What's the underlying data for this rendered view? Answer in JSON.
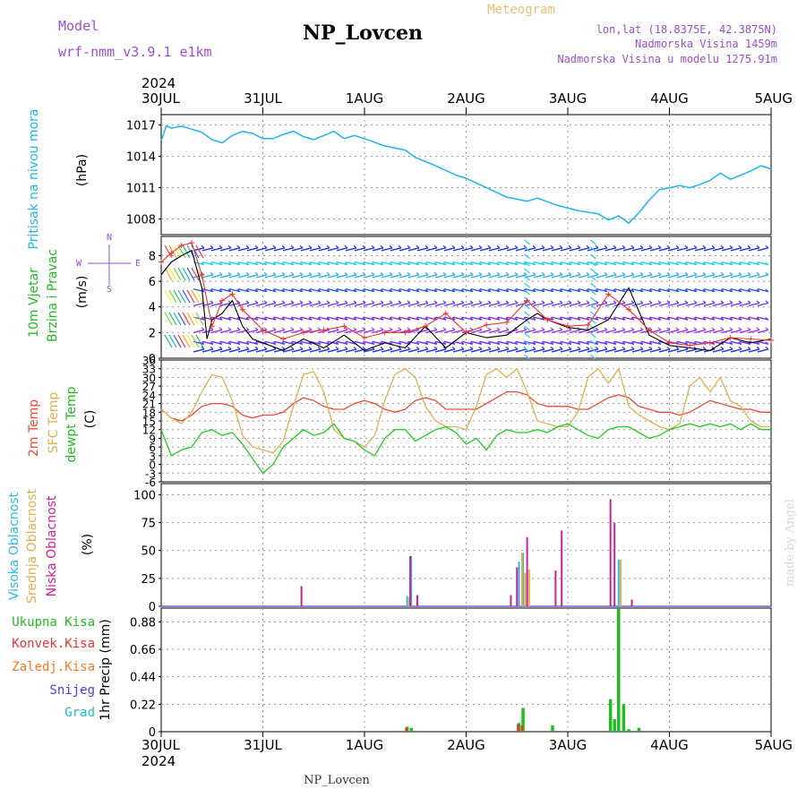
{
  "header": {
    "model_label": "Model",
    "model_name": "wrf-nmm_v3.9.1  e1km",
    "station": "NP_Lovcen",
    "meteogram": "Meteogram",
    "lonlat": "lon,lat (18.8375E, 42.3875N)",
    "altitude": "Nadmorska Visina 1459m",
    "model_altitude": "Nadmorska Visina u modelu 1275.91m",
    "year": "2024",
    "footer": "NP_Lovcen",
    "credit": "made by Angel"
  },
  "colors": {
    "pressure": "#1fb4ee",
    "temp2m": "#ef4a3a",
    "sfc": "#e0b050",
    "dewpt": "#22cc22",
    "high_cloud": "#2fb8e0",
    "mid_cloud": "#e0b050",
    "low_cloud": "#cc2299",
    "total_precip": "#22bb22",
    "conv_precip": "#ee3333",
    "frz_precip": "#ff7722",
    "snow": "#4444ee",
    "hail": "#22bbbb",
    "label_purple": "#9b4fd0"
  },
  "chart_data": [
    {
      "type": "line",
      "panel": "pressure",
      "ylabel_left": "Pritisak na nivou mora",
      "ylabel_unit": "(hPa)",
      "x_ticks": [
        "30JUL",
        "31JUL",
        "1AUG",
        "2AUG",
        "3AUG",
        "4AUG",
        "5AUG"
      ],
      "x_range_days": [
        0,
        6
      ],
      "ylim": [
        1006.5,
        1018
      ],
      "y_ticks": [
        1008,
        1011,
        1014,
        1017
      ],
      "grid": true,
      "series": [
        {
          "x": [
            0,
            0.05,
            0.1,
            0.2,
            0.3,
            0.4,
            0.5,
            0.6,
            0.7,
            0.8,
            0.9,
            1.0,
            1.1,
            1.2,
            1.3,
            1.4,
            1.5,
            1.6,
            1.7,
            1.8,
            1.9,
            2.0,
            2.2,
            2.4,
            2.5,
            2.7,
            2.9,
            3.0,
            3.2,
            3.4,
            3.5,
            3.6,
            3.7,
            3.9,
            4.1,
            4.3,
            4.4,
            4.5,
            4.6,
            4.7,
            4.8,
            4.9,
            5.0,
            5.1,
            5.2,
            5.3,
            5.4,
            5.5,
            5.6,
            5.7,
            5.8,
            5.9,
            6.0
          ],
          "values": [
            1015.5,
            1016.9,
            1016.7,
            1016.9,
            1016.6,
            1016.3,
            1015.6,
            1015.3,
            1016.0,
            1016.4,
            1016.2,
            1015.7,
            1015.7,
            1016.1,
            1016.4,
            1015.9,
            1015.6,
            1016.0,
            1016.4,
            1015.7,
            1016.0,
            1015.7,
            1015.0,
            1014.6,
            1013.9,
            1013.1,
            1012.2,
            1011.9,
            1011.0,
            1010.1,
            1009.9,
            1009.7,
            1010.0,
            1009.3,
            1008.8,
            1008.5,
            1007.9,
            1008.3,
            1007.6,
            1008.6,
            1009.8,
            1010.8,
            1011.0,
            1011.2,
            1011.0,
            1011.3,
            1011.7,
            1012.4,
            1011.8,
            1012.2,
            1012.6,
            1013.1,
            1012.8
          ]
        }
      ]
    },
    {
      "type": "line",
      "panel": "wind",
      "ylabel_left": "10m Vjetar",
      "ylabel_left2": "Brzina i Pravac",
      "ylabel_unit": "(m/s)",
      "compass": [
        "N",
        "W",
        "E",
        "S"
      ],
      "ylim": [
        0,
        9.5
      ],
      "y_ticks": [
        0,
        2,
        4,
        6,
        8
      ],
      "grid": true,
      "series": [
        {
          "name": "speed",
          "x": [
            0,
            0.1,
            0.2,
            0.3,
            0.4,
            0.45,
            0.5,
            0.6,
            0.7,
            0.8,
            0.9,
            1.0,
            1.2,
            1.4,
            1.6,
            1.8,
            2.0,
            2.2,
            2.4,
            2.6,
            2.8,
            3.0,
            3.2,
            3.4,
            3.6,
            3.7,
            3.8,
            4.0,
            4.2,
            4.4,
            4.6,
            4.8,
            5.0,
            5.2,
            5.4,
            5.6,
            5.8,
            6.0
          ],
          "values": [
            6.5,
            7.5,
            8.0,
            8.4,
            5.5,
            1.5,
            3.0,
            3.5,
            4.5,
            2.5,
            1.5,
            1.2,
            0.6,
            1.5,
            0.8,
            1.8,
            0.6,
            1.2,
            0.8,
            2.5,
            0.8,
            2.0,
            1.6,
            1.8,
            3.0,
            3.5,
            3.0,
            2.4,
            2.2,
            3.0,
            5.5,
            1.8,
            1.0,
            0.8,
            0.6,
            1.6,
            1.2,
            1.5
          ]
        },
        {
          "name": "gust",
          "x": [
            0,
            0.1,
            0.2,
            0.3,
            0.4,
            0.5,
            0.6,
            0.7,
            0.8,
            1.0,
            1.2,
            1.4,
            1.6,
            1.8,
            2.0,
            2.2,
            2.4,
            2.6,
            2.8,
            3.0,
            3.2,
            3.4,
            3.6,
            3.8,
            4.0,
            4.2,
            4.4,
            4.6,
            4.8,
            5.0,
            5.2,
            5.4,
            5.6,
            5.8,
            6.0
          ],
          "values": [
            7.5,
            8.2,
            8.8,
            9.0,
            6.5,
            2.5,
            4.5,
            5.0,
            3.8,
            2.2,
            1.5,
            2.0,
            2.2,
            2.5,
            1.6,
            2.0,
            2.0,
            2.5,
            3.5,
            2.0,
            2.6,
            2.8,
            4.5,
            3.0,
            2.5,
            2.6,
            5.0,
            3.8,
            2.2,
            1.2,
            1.0,
            1.2,
            1.6,
            1.5,
            1.4
          ]
        }
      ]
    },
    {
      "type": "line",
      "panel": "temperature",
      "ylabel_left": "2m Temp",
      "ylabel_left2": "SFC Temp",
      "ylabel_left3": "dewpt Temp",
      "ylabel_unit": "(C)",
      "ylim": [
        -6,
        36
      ],
      "y_ticks": [
        -6,
        -3,
        0,
        3,
        6,
        9,
        12,
        15,
        18,
        21,
        24,
        27,
        30,
        33,
        36
      ],
      "y_tick_labels": [
        "-6",
        "-3",
        "0",
        "3",
        "6",
        "9",
        "12",
        "15",
        "18",
        "21",
        "24",
        "27",
        "30",
        "33",
        "36"
      ],
      "grid": true,
      "series": [
        {
          "name": "2m Temp",
          "x": [
            0,
            0.1,
            0.2,
            0.3,
            0.4,
            0.5,
            0.6,
            0.7,
            0.8,
            0.9,
            1.0,
            1.1,
            1.2,
            1.3,
            1.4,
            1.5,
            1.6,
            1.7,
            1.8,
            1.9,
            2.0,
            2.1,
            2.2,
            2.3,
            2.4,
            2.5,
            2.6,
            2.7,
            2.8,
            2.9,
            3.0,
            3.1,
            3.2,
            3.3,
            3.4,
            3.5,
            3.6,
            3.7,
            3.8,
            3.9,
            4.0,
            4.1,
            4.2,
            4.3,
            4.4,
            4.5,
            4.6,
            4.7,
            4.8,
            4.9,
            5.0,
            5.1,
            5.2,
            5.3,
            5.4,
            5.5,
            5.6,
            5.7,
            5.8,
            5.9,
            6.0
          ],
          "values": [
            19,
            16,
            15,
            17,
            20,
            21,
            21,
            20,
            17,
            16,
            17,
            17,
            18,
            21,
            23,
            22,
            20,
            19,
            19,
            21,
            22,
            21,
            19,
            18,
            19,
            22,
            23,
            22,
            19,
            19,
            19,
            19,
            21,
            23,
            25,
            25,
            24,
            21,
            20,
            20,
            20,
            19,
            19,
            21,
            23,
            24,
            23,
            20,
            19,
            18,
            18,
            17,
            18,
            20,
            22,
            21,
            20,
            19,
            19,
            18,
            18
          ]
        },
        {
          "name": "SFC Temp",
          "x": [
            0,
            0.1,
            0.2,
            0.3,
            0.4,
            0.5,
            0.6,
            0.7,
            0.8,
            0.9,
            1.0,
            1.1,
            1.2,
            1.3,
            1.4,
            1.5,
            1.6,
            1.7,
            1.8,
            1.9,
            2.0,
            2.1,
            2.2,
            2.3,
            2.4,
            2.5,
            2.6,
            2.7,
            2.8,
            2.9,
            3.0,
            3.1,
            3.2,
            3.3,
            3.4,
            3.5,
            3.6,
            3.7,
            3.8,
            3.9,
            4.0,
            4.1,
            4.2,
            4.3,
            4.4,
            4.5,
            4.6,
            4.7,
            4.8,
            4.9,
            5.0,
            5.1,
            5.2,
            5.3,
            5.4,
            5.5,
            5.6,
            5.7,
            5.8,
            5.9,
            6.0
          ],
          "values": [
            19,
            16,
            14,
            18,
            25,
            31,
            30,
            22,
            10,
            6,
            5,
            4,
            8,
            20,
            31,
            32,
            25,
            12,
            9,
            8,
            6,
            10,
            22,
            31,
            33,
            30,
            20,
            15,
            13,
            13,
            12,
            20,
            31,
            33,
            30,
            33,
            25,
            15,
            14,
            13,
            13,
            18,
            30,
            33,
            28,
            33,
            20,
            17,
            15,
            13,
            12,
            14,
            27,
            30,
            25,
            30,
            22,
            20,
            15,
            13,
            13
          ]
        },
        {
          "name": "dewpt Temp",
          "x": [
            0,
            0.1,
            0.2,
            0.3,
            0.4,
            0.5,
            0.6,
            0.7,
            0.8,
            0.9,
            1.0,
            1.1,
            1.2,
            1.3,
            1.4,
            1.5,
            1.6,
            1.7,
            1.8,
            1.9,
            2.0,
            2.1,
            2.2,
            2.3,
            2.4,
            2.5,
            2.6,
            2.7,
            2.8,
            2.9,
            3.0,
            3.1,
            3.2,
            3.3,
            3.4,
            3.5,
            3.6,
            3.7,
            3.8,
            3.9,
            4.0,
            4.1,
            4.2,
            4.3,
            4.4,
            4.5,
            4.6,
            4.7,
            4.8,
            4.9,
            5.0,
            5.1,
            5.2,
            5.3,
            5.4,
            5.5,
            5.6,
            5.7,
            5.8,
            5.9,
            6.0
          ],
          "values": [
            12,
            3,
            5,
            6,
            11,
            12,
            10,
            11,
            7,
            2,
            -3,
            0,
            6,
            9,
            12,
            10,
            11,
            14,
            9,
            8,
            5,
            3,
            9,
            12,
            12,
            8,
            10,
            12,
            13,
            11,
            7,
            9,
            5,
            10,
            12,
            11,
            11,
            12,
            11,
            13,
            14,
            12,
            10,
            9,
            12,
            13,
            13,
            11,
            9,
            10,
            12,
            13,
            14,
            13,
            14,
            13,
            14,
            12,
            14,
            12,
            12
          ]
        }
      ]
    },
    {
      "type": "bar",
      "panel": "clouds",
      "ylabel_left": "Visoka Oblacnost",
      "ylabel_left2": "Srednja Oblacnost",
      "ylabel_left3": "Niska Oblacnost",
      "ylabel_unit": "(%)",
      "ylim": [
        0,
        110
      ],
      "y_ticks": [
        0,
        25,
        50,
        75,
        100
      ],
      "grid": true,
      "series": [
        {
          "name": "Visoka Oblacnost",
          "x": [
            2.42,
            2.46,
            3.52,
            3.56,
            4.5
          ],
          "values": [
            9,
            45,
            40,
            48,
            42
          ]
        },
        {
          "name": "Srednja Oblacnost",
          "x": [
            2.44,
            3.55,
            3.58,
            3.62,
            4.52
          ],
          "values": [
            8,
            48,
            30,
            33,
            42
          ]
        },
        {
          "name": "Niska Oblacnost",
          "x": [
            1.38,
            2.45,
            2.52,
            3.44,
            3.5,
            3.6,
            3.88,
            3.94,
            4.42,
            4.46,
            4.63
          ],
          "values": [
            18,
            45,
            10,
            10,
            35,
            62,
            32,
            68,
            96,
            75,
            6
          ]
        }
      ]
    },
    {
      "type": "bar",
      "panel": "precip",
      "ylabel_left": "1hr Precip (mm)",
      "legend": [
        "Ukupna Kisa",
        "Konvek.Kisa",
        "Zaledj.Kisa",
        "Snijeg",
        "Grad"
      ],
      "ylim": [
        0,
        0.99
      ],
      "y_ticks": [
        0,
        0.22,
        0.44,
        0.66,
        0.88
      ],
      "y_tick_labels": [
        "0",
        "0.22",
        "0.44",
        "0.66",
        "0.88"
      ],
      "grid": true,
      "series": [
        {
          "name": "Ukupna Kisa",
          "x": [
            2.42,
            2.46,
            3.52,
            3.56,
            3.85,
            4.42,
            4.46,
            4.5,
            4.55,
            4.6,
            4.7
          ],
          "values": [
            0.04,
            0.03,
            0.07,
            0.19,
            0.05,
            0.26,
            0.1,
            0.99,
            0.22,
            0.02,
            0.03
          ]
        },
        {
          "name": "Konvek.Kisa",
          "x": [
            2.41,
            3.51,
            3.55
          ],
          "values": [
            0.03,
            0.06,
            0.05
          ]
        }
      ]
    }
  ]
}
